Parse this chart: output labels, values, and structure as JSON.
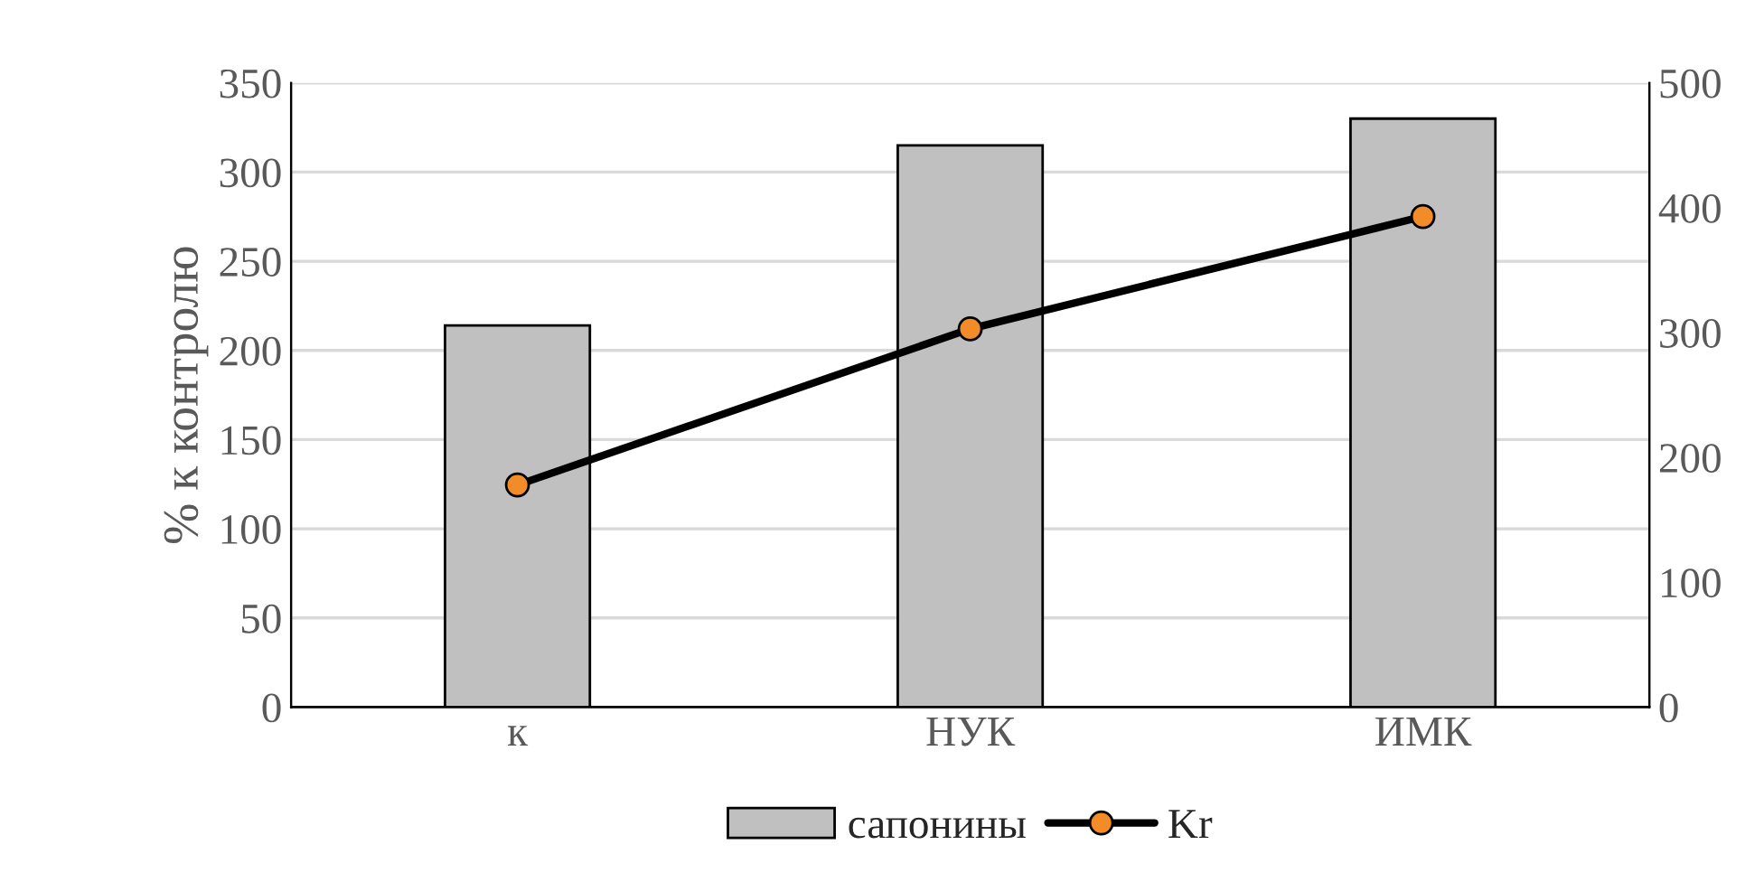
{
  "chart_data": {
    "type": "bar",
    "ylabel": "% к контролю",
    "categories": [
      "к",
      "НУК",
      "ИМК"
    ],
    "series": [
      {
        "name": "сапонины",
        "color": "#c0c0c0",
        "values": [
          214,
          315,
          330
        ]
      },
      {
        "name": "Kr",
        "type": "line",
        "axis": "y2",
        "color": "#000000",
        "marker": "circle",
        "values": [
          178,
          303,
          393
        ]
      }
    ],
    "ylim": [
      0,
      350
    ],
    "yticks": [
      0,
      50,
      100,
      150,
      200,
      250,
      300,
      350
    ],
    "y2lim": [
      0,
      500
    ],
    "y2ticks": [
      0,
      100,
      200,
      300,
      400,
      500
    ],
    "grid": "y",
    "legend": "bottom"
  }
}
